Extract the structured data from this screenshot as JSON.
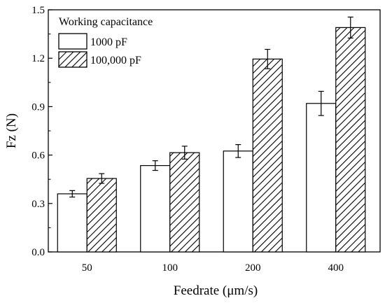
{
  "chart_data": {
    "type": "bar",
    "xlabel": "Feedrate (μm/s)",
    "ylabel": "Fz (N)",
    "ylim": [
      0,
      1.5
    ],
    "yticks": [
      "0.0",
      "0.3",
      "0.6",
      "0.9",
      "1.2",
      "1.5"
    ],
    "categories": [
      "50",
      "100",
      "200",
      "400"
    ],
    "legend": {
      "title": "Working capacitance",
      "placement": "top-left"
    },
    "series": [
      {
        "name": "1000 pF",
        "fill": "plain",
        "values": [
          0.36,
          0.535,
          0.625,
          0.92
        ],
        "errors": [
          0.02,
          0.03,
          0.04,
          0.075
        ]
      },
      {
        "name": "100,000 pF",
        "fill": "hatched",
        "values": [
          0.455,
          0.615,
          1.195,
          1.39
        ],
        "errors": [
          0.03,
          0.04,
          0.06,
          0.065
        ]
      }
    ],
    "grid": false
  }
}
